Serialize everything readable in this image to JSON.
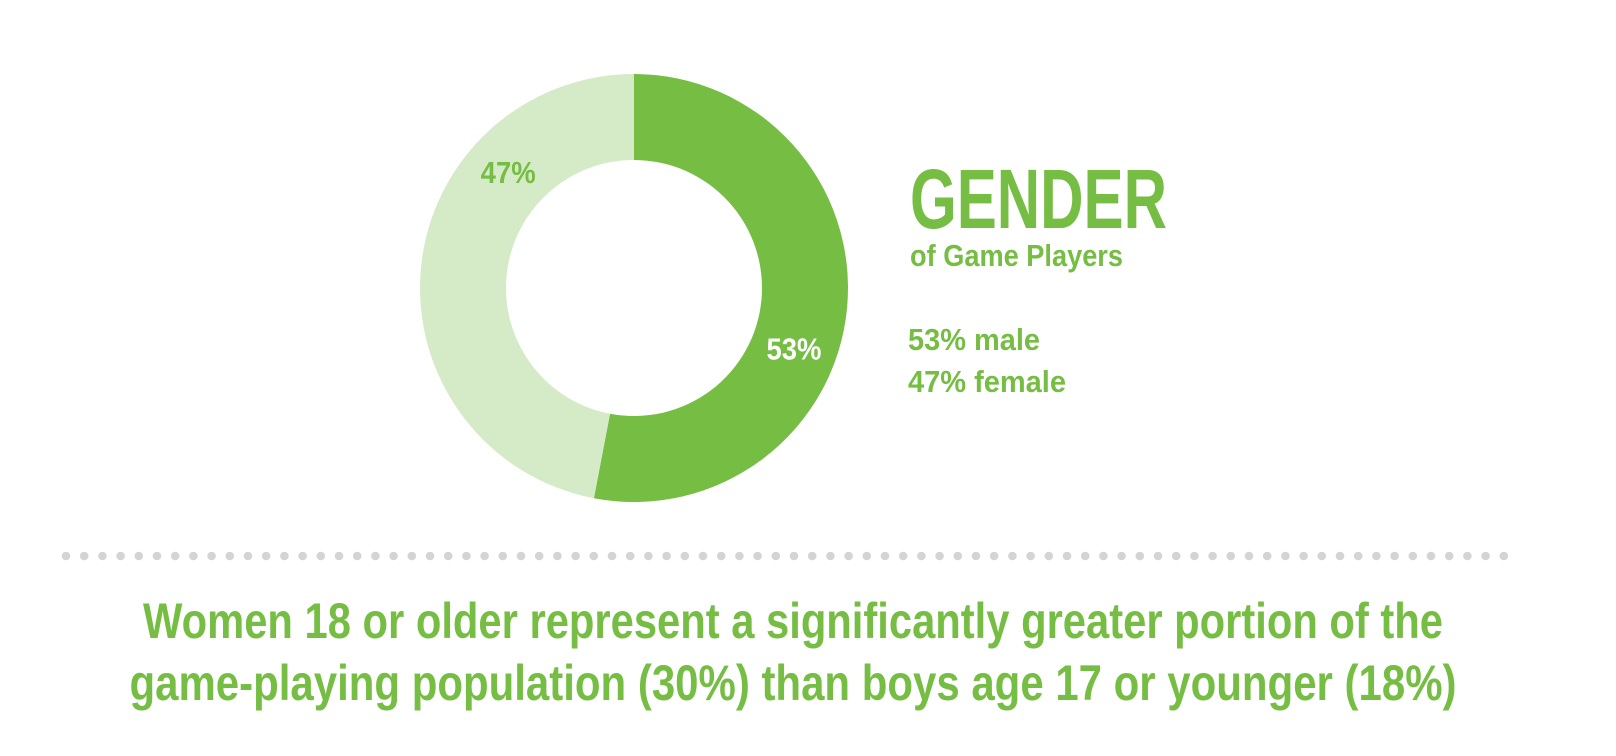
{
  "chart_data": {
    "type": "donut",
    "title": "GENDER",
    "subtitle": "of Game Players",
    "values": [
      53,
      47
    ],
    "value_labels": [
      "53%",
      "47%"
    ],
    "colors": [
      "#76bd43",
      "#d5ebc8"
    ],
    "value_label_colors": [
      "#ffffff",
      "#76bd43"
    ],
    "legend_texts": [
      "53% male",
      "47% female"
    ],
    "footnote_lines": [
      "Women 18 or older represent a significantly greater portion of the",
      "game-playing population (30%) than boys age 17 or younger (18%)"
    ]
  }
}
